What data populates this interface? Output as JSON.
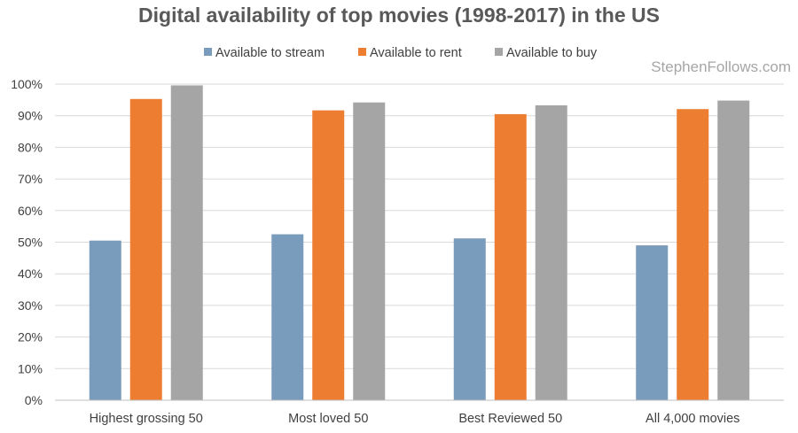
{
  "watermark": "StephenFollows.com",
  "chart_data": {
    "type": "bar",
    "title": "Digital availability of top movies (1998-2017) in the US",
    "xlabel": "",
    "ylabel": "",
    "categories": [
      "Highest grossing 50",
      "Most loved 50",
      "Best Reviewed 50",
      "All 4,000 movies"
    ],
    "series": [
      {
        "name": "Available to stream",
        "color": "#7a9cbc",
        "values": [
          50.5,
          52.5,
          51.2,
          49.0
        ]
      },
      {
        "name": "Available to rent",
        "color": "#ed7d31",
        "values": [
          95.3,
          91.7,
          90.5,
          92.1
        ]
      },
      {
        "name": "Available to buy",
        "color": "#a5a5a5",
        "values": [
          99.6,
          94.2,
          93.3,
          94.8
        ]
      }
    ],
    "ylim": [
      0,
      100
    ],
    "yticks": [
      "0%",
      "10%",
      "20%",
      "30%",
      "40%",
      "50%",
      "60%",
      "70%",
      "80%",
      "90%",
      "100%"
    ],
    "grid": true,
    "legend": "top"
  }
}
